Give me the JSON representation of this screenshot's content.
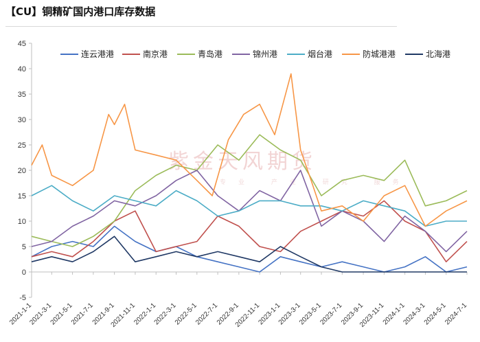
{
  "title": "【CU】铜精矿国内港口库存数据",
  "watermark": {
    "main": "紫金天风期货",
    "sub": "专业 产业 研究 服务"
  },
  "colors": {
    "连云港港": "#4472c4",
    "南京港": "#c0504d",
    "青岛港": "#9bbb59",
    "锦州港": "#8064a2",
    "烟台港": "#4bacc6",
    "防城港港": "#f79646",
    "北海港": "#1f3864"
  },
  "chart_data": {
    "type": "line",
    "title": "",
    "xlabel": "",
    "ylabel": "",
    "ylim": [
      -5,
      45
    ],
    "yticks": [
      -5,
      0,
      5,
      10,
      15,
      20,
      25,
      30,
      35,
      40,
      45
    ],
    "x_range": [
      "2021-01-01",
      "2024-07-01"
    ],
    "xticks": [
      "2021-1-1",
      "2021-3-1",
      "2021-5-1",
      "2021-7-1",
      "2021-9-1",
      "2021-11-1",
      "2022-1-1",
      "2022-3-1",
      "2022-5-1",
      "2022-7-1",
      "2022-9-1",
      "2022-11-1",
      "2023-1-1",
      "2023-3-1",
      "2023-5-1",
      "2023-7-1",
      "2023-9-1",
      "2023-11-1",
      "2024-1-1",
      "2024-3-1",
      "2024-5-1",
      "2024-7-1"
    ],
    "grid": false,
    "legend": "top",
    "series": [
      {
        "name": "连云港港",
        "x": [
          "2021-01-01",
          "2021-03-01",
          "2021-05-01",
          "2021-07-01",
          "2021-09-01",
          "2021-11-01",
          "2022-01-01",
          "2022-03-01",
          "2022-05-01",
          "2022-07-01",
          "2022-09-01",
          "2022-11-01",
          "2023-01-01",
          "2023-03-01",
          "2023-05-01",
          "2023-07-01",
          "2023-09-01",
          "2023-11-01",
          "2024-01-01",
          "2024-03-01",
          "2024-05-01",
          "2024-07-01"
        ],
        "values": [
          3,
          5,
          6,
          5,
          9,
          6,
          4,
          5,
          3,
          2,
          1,
          0,
          3,
          2,
          1,
          2,
          1,
          0,
          1,
          3,
          0,
          1
        ]
      },
      {
        "name": "南京港",
        "x": [
          "2021-01-01",
          "2021-03-01",
          "2021-05-01",
          "2021-07-01",
          "2021-09-01",
          "2021-11-01",
          "2022-01-01",
          "2022-03-01",
          "2022-05-01",
          "2022-07-01",
          "2022-09-01",
          "2022-11-01",
          "2023-01-01",
          "2023-03-01",
          "2023-05-01",
          "2023-07-01",
          "2023-09-01",
          "2023-11-01",
          "2024-01-01",
          "2024-03-01",
          "2024-05-01",
          "2024-07-01"
        ],
        "values": [
          3,
          4,
          3,
          6,
          10,
          12,
          4,
          5,
          6,
          11,
          9,
          5,
          4,
          8,
          10,
          12,
          11,
          14,
          10,
          8,
          2,
          6
        ]
      },
      {
        "name": "青岛港",
        "x": [
          "2021-01-01",
          "2021-03-01",
          "2021-05-01",
          "2021-07-01",
          "2021-09-01",
          "2021-11-01",
          "2022-01-01",
          "2022-03-01",
          "2022-05-01",
          "2022-07-01",
          "2022-09-01",
          "2022-11-01",
          "2023-01-01",
          "2023-03-01",
          "2023-05-01",
          "2023-07-01",
          "2023-09-01",
          "2023-11-01",
          "2024-01-01",
          "2024-03-01",
          "2024-05-01",
          "2024-07-01"
        ],
        "values": [
          7,
          6,
          5,
          7,
          10,
          16,
          19,
          21,
          20,
          25,
          22,
          27,
          24,
          22,
          15,
          18,
          19,
          18,
          22,
          13,
          14,
          16
        ]
      },
      {
        "name": "锦州港",
        "x": [
          "2021-01-01",
          "2021-03-01",
          "2021-05-01",
          "2021-07-01",
          "2021-09-01",
          "2021-11-01",
          "2022-01-01",
          "2022-03-01",
          "2022-05-01",
          "2022-07-01",
          "2022-09-01",
          "2022-11-01",
          "2023-01-01",
          "2023-03-01",
          "2023-05-01",
          "2023-07-01",
          "2023-09-01",
          "2023-11-01",
          "2024-01-01",
          "2024-03-01",
          "2024-05-01",
          "2024-07-01"
        ],
        "values": [
          5,
          6,
          9,
          11,
          14,
          13,
          15,
          18,
          20,
          15,
          12,
          16,
          14,
          20,
          9,
          12,
          10,
          6,
          11,
          8,
          4,
          8
        ]
      },
      {
        "name": "烟台港",
        "x": [
          "2021-01-01",
          "2021-03-01",
          "2021-05-01",
          "2021-07-01",
          "2021-09-01",
          "2021-11-01",
          "2022-01-01",
          "2022-03-01",
          "2022-05-01",
          "2022-07-01",
          "2022-09-01",
          "2022-11-01",
          "2023-01-01",
          "2023-03-01",
          "2023-05-01",
          "2023-07-01",
          "2023-09-01",
          "2023-11-01",
          "2024-01-01",
          "2024-03-01",
          "2024-05-01",
          "2024-07-01"
        ],
        "values": [
          15,
          17,
          14,
          12,
          15,
          14,
          13,
          16,
          14,
          11,
          12,
          14,
          14,
          13,
          13,
          12,
          14,
          13,
          12,
          9,
          10,
          10
        ]
      },
      {
        "name": "防城港港",
        "x": [
          "2021-01-01",
          "2021-02-01",
          "2021-03-01",
          "2021-05-01",
          "2021-07-01",
          "2021-08-15",
          "2021-09-01",
          "2021-10-01",
          "2021-11-01",
          "2022-01-01",
          "2022-03-01",
          "2022-05-01",
          "2022-06-15",
          "2022-08-01",
          "2022-09-15",
          "2022-11-01",
          "2022-12-15",
          "2023-02-01",
          "2023-03-01",
          "2023-04-01",
          "2023-05-01",
          "2023-07-01",
          "2023-09-01",
          "2023-11-01",
          "2024-01-01",
          "2024-03-01",
          "2024-05-01",
          "2024-07-01"
        ],
        "values": [
          21,
          25,
          19,
          17,
          20,
          31,
          29,
          33,
          24,
          23,
          22,
          18,
          15,
          26,
          31,
          33,
          27,
          39,
          24,
          18,
          12,
          13,
          10,
          15,
          17,
          9,
          12,
          14
        ]
      },
      {
        "name": "北海港",
        "x": [
          "2021-01-01",
          "2021-03-01",
          "2021-05-01",
          "2021-07-01",
          "2021-09-01",
          "2021-11-01",
          "2022-01-01",
          "2022-03-01",
          "2022-05-01",
          "2022-07-01",
          "2022-09-01",
          "2022-11-01",
          "2023-01-01",
          "2023-03-01",
          "2023-05-01",
          "2023-07-01",
          "2023-09-01",
          "2023-11-01",
          "2024-01-01",
          "2024-03-01",
          "2024-05-01",
          "2024-07-01"
        ],
        "values": [
          2,
          3,
          2,
          4,
          7,
          2,
          3,
          4,
          3,
          4,
          3,
          2,
          5,
          3,
          1,
          0,
          0,
          0,
          0,
          0,
          0,
          0
        ]
      }
    ]
  }
}
